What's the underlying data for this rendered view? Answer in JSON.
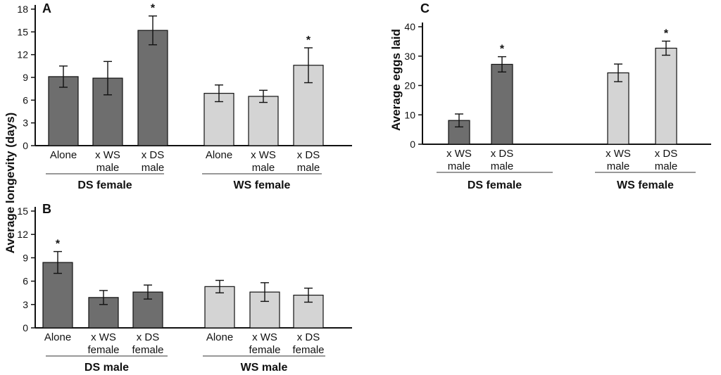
{
  "chart_data": [
    {
      "id": "A",
      "type": "bar",
      "panel_label": "A",
      "ylabel": "Average longevity (days)",
      "ylim": [
        0,
        18
      ],
      "yticks": [
        0,
        3,
        6,
        9,
        12,
        15,
        18
      ],
      "colors": {
        "DS": "#6e6e6e",
        "WS": "#d4d4d4"
      },
      "groups": [
        {
          "name": "DS female",
          "color_key": "DS",
          "categories": [
            "Alone",
            "x WS\nmale",
            "x DS\nmale"
          ],
          "values": [
            9.1,
            8.9,
            15.2
          ],
          "errors": [
            1.4,
            2.2,
            1.9
          ],
          "significant": [
            false,
            false,
            true
          ]
        },
        {
          "name": "WS female",
          "color_key": "WS",
          "categories": [
            "Alone",
            "x WS\nmale",
            "x DS\nmale"
          ],
          "values": [
            6.9,
            6.5,
            10.6
          ],
          "errors": [
            1.1,
            0.8,
            2.3
          ],
          "significant": [
            false,
            false,
            true
          ]
        }
      ]
    },
    {
      "id": "B",
      "type": "bar",
      "panel_label": "B",
      "ylabel": "",
      "ylim": [
        0,
        15
      ],
      "yticks": [
        0,
        3,
        6,
        9,
        12,
        15
      ],
      "colors": {
        "DS": "#6e6e6e",
        "WS": "#d4d4d4"
      },
      "groups": [
        {
          "name": "DS male",
          "color_key": "DS",
          "categories": [
            "Alone",
            "x WS\nfemale",
            "x DS\nfemale"
          ],
          "values": [
            8.4,
            3.9,
            4.6
          ],
          "errors": [
            1.4,
            0.9,
            0.9
          ],
          "significant": [
            true,
            false,
            false
          ]
        },
        {
          "name": "WS male",
          "color_key": "WS",
          "categories": [
            "Alone",
            "x WS\nfemale",
            "x DS\nfemale"
          ],
          "values": [
            5.3,
            4.6,
            4.2
          ],
          "errors": [
            0.8,
            1.2,
            0.9
          ],
          "significant": [
            false,
            false,
            false
          ]
        }
      ]
    },
    {
      "id": "C",
      "type": "bar",
      "panel_label": "C",
      "ylabel": "Average eggs laid",
      "ylim": [
        0,
        40
      ],
      "yticks": [
        0,
        10,
        20,
        30,
        40
      ],
      "colors": {
        "DS": "#6e6e6e",
        "WS": "#d4d4d4"
      },
      "groups": [
        {
          "name": "DS female",
          "color_key": "DS",
          "categories": [
            "x WS\nmale",
            "x DS\nmale"
          ],
          "values": [
            8.1,
            27.2
          ],
          "errors": [
            2.2,
            2.6
          ],
          "significant": [
            false,
            true
          ]
        },
        {
          "name": "WS female",
          "color_key": "WS",
          "categories": [
            "x WS\nmale",
            "x DS\nmale"
          ],
          "values": [
            24.3,
            32.7
          ],
          "errors": [
            3.0,
            2.4
          ],
          "significant": [
            false,
            true
          ]
        }
      ]
    }
  ]
}
